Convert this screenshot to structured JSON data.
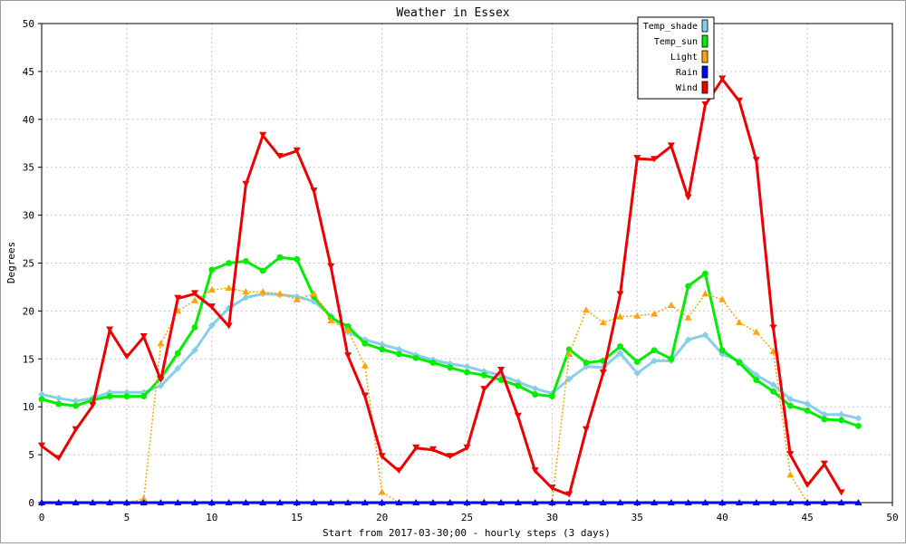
{
  "chart_data": {
    "type": "line",
    "title": "Weather in Essex",
    "xlabel": "Start from 2017-03-30;00 - hourly steps (3 days)",
    "ylabel": "Degrees",
    "xlim": [
      0,
      50
    ],
    "ylim": [
      0,
      50
    ],
    "xticks": [
      "0",
      "5",
      "10",
      "15",
      "20",
      "25",
      "30",
      "35",
      "40",
      "45",
      "50"
    ],
    "yticks": [
      "0",
      "5",
      "10",
      "15",
      "20",
      "25",
      "30",
      "35",
      "40",
      "45",
      "50"
    ],
    "grid": true,
    "legend_position": "top-right",
    "series": [
      {
        "name": "Temp_shade",
        "color": "#87ceeb",
        "marker": "diamond",
        "line": "solid",
        "x": [
          0,
          1,
          2,
          3,
          4,
          5,
          6,
          7,
          8,
          9,
          10,
          11,
          12,
          13,
          14,
          15,
          16,
          17,
          18,
          19,
          20,
          21,
          22,
          23,
          24,
          25,
          26,
          27,
          28,
          29,
          30,
          31,
          32,
          33,
          34,
          35,
          36,
          37,
          38,
          39,
          40,
          41,
          42,
          43,
          44,
          45,
          46,
          47,
          48
        ],
        "values": [
          11.3,
          10.9,
          10.6,
          10.9,
          11.5,
          11.5,
          11.5,
          12.2,
          14.0,
          15.9,
          18.5,
          20.3,
          21.4,
          21.8,
          21.7,
          21.5,
          21.0,
          19.5,
          17.8,
          17.0,
          16.5,
          16.0,
          15.4,
          14.9,
          14.5,
          14.2,
          13.7,
          13.3,
          12.6,
          11.9,
          11.4,
          12.9,
          14.2,
          14.1,
          15.6,
          13.5,
          14.8,
          14.8,
          17.0,
          17.5,
          15.5,
          14.8,
          13.3,
          12.3,
          10.8,
          10.3,
          9.2,
          9.2,
          8.8
        ]
      },
      {
        "name": "Temp_sun",
        "color": "#00ee00",
        "marker": "circle",
        "line": "solid",
        "x": [
          0,
          1,
          2,
          3,
          4,
          5,
          6,
          7,
          8,
          9,
          10,
          11,
          12,
          13,
          14,
          15,
          16,
          17,
          18,
          19,
          20,
          21,
          22,
          23,
          24,
          25,
          26,
          27,
          28,
          29,
          30,
          31,
          32,
          33,
          34,
          35,
          36,
          37,
          38,
          39,
          40,
          41,
          42,
          43,
          44,
          45,
          46,
          47,
          48
        ],
        "values": [
          10.8,
          10.3,
          10.1,
          10.7,
          11.1,
          11.1,
          11.1,
          13.0,
          15.6,
          18.3,
          24.3,
          25.0,
          25.2,
          24.2,
          25.6,
          25.4,
          21.5,
          19.3,
          18.4,
          16.6,
          16.0,
          15.5,
          15.1,
          14.6,
          14.1,
          13.6,
          13.3,
          12.8,
          12.2,
          11.3,
          11.1,
          16.0,
          14.6,
          14.8,
          16.3,
          14.7,
          15.9,
          15.0,
          22.6,
          23.9,
          15.9,
          14.6,
          12.8,
          11.6,
          10.1,
          9.6,
          8.7,
          8.6,
          8.0
        ]
      },
      {
        "name": "Light",
        "color": "#ffa500",
        "marker": "triangle-up",
        "line": "dotted",
        "x": [
          0,
          1,
          2,
          3,
          4,
          5,
          6,
          7,
          8,
          9,
          10,
          11,
          12,
          13,
          14,
          15,
          16,
          17,
          18,
          19,
          20,
          21,
          22,
          23,
          24,
          25,
          26,
          27,
          28,
          29,
          30,
          31,
          32,
          33,
          34,
          35,
          36,
          37,
          38,
          39,
          40,
          41,
          42,
          43,
          44,
          45,
          46,
          47,
          48
        ],
        "values": [
          0,
          0,
          0,
          0,
          0,
          0,
          0.4,
          16.6,
          20.0,
          21.1,
          22.2,
          22.4,
          22.0,
          22.0,
          21.8,
          21.2,
          21.8,
          19.0,
          18.0,
          14.3,
          1.1,
          0,
          0,
          0,
          0,
          0,
          0.1,
          0,
          0,
          0,
          0.1,
          15.5,
          20.1,
          18.8,
          19.4,
          19.5,
          19.7,
          20.6,
          19.3,
          21.8,
          21.2,
          18.8,
          17.8,
          15.8,
          2.9,
          0,
          0,
          0,
          0
        ]
      },
      {
        "name": "Rain",
        "color": "#0000ff",
        "marker": "triangle-up",
        "line": "solid",
        "x": [
          0,
          1,
          2,
          3,
          4,
          5,
          6,
          7,
          8,
          9,
          10,
          11,
          12,
          13,
          14,
          15,
          16,
          17,
          18,
          19,
          20,
          21,
          22,
          23,
          24,
          25,
          26,
          27,
          28,
          29,
          30,
          31,
          32,
          33,
          34,
          35,
          36,
          37,
          38,
          39,
          40,
          41,
          42,
          43,
          44,
          45,
          46,
          47,
          48
        ],
        "values": [
          0,
          0,
          0,
          0,
          0,
          0,
          0,
          0,
          0,
          0,
          0,
          0,
          0,
          0,
          0,
          0,
          0,
          0,
          0,
          0,
          0,
          0,
          0,
          0,
          0,
          0,
          0,
          0,
          0,
          0,
          0,
          0,
          0,
          0,
          0,
          0,
          0,
          0,
          0,
          0,
          0,
          0,
          0,
          0,
          0,
          0,
          0,
          0,
          0
        ]
      },
      {
        "name": "Wind",
        "color": "#ee0000",
        "marker": "triangle-down",
        "line": "solid",
        "x": [
          0,
          1,
          2,
          3,
          4,
          5,
          6,
          7,
          8,
          9,
          10,
          11,
          12,
          13,
          14,
          15,
          16,
          17,
          18,
          19,
          20,
          21,
          22,
          23,
          24,
          25,
          26,
          27,
          28,
          29,
          30,
          31,
          32,
          33,
          34,
          35,
          36,
          37,
          38,
          39,
          40,
          41,
          42,
          43,
          44,
          45,
          46,
          47
        ],
        "values": [
          5.9,
          4.6,
          7.6,
          10.1,
          18.0,
          15.2,
          17.3,
          12.8,
          21.3,
          21.8,
          20.4,
          18.4,
          33.2,
          38.3,
          36.1,
          36.7,
          32.5,
          24.6,
          15.3,
          11.1,
          4.8,
          3.3,
          5.7,
          5.5,
          4.8,
          5.7,
          11.8,
          13.8,
          9.0,
          3.3,
          1.5,
          0.8,
          7.6,
          13.5,
          21.7,
          35.9,
          35.8,
          37.2,
          31.8,
          41.5,
          44.2,
          41.9,
          35.7,
          18.2,
          5.0,
          1.8,
          4.0,
          1.0
        ]
      }
    ]
  }
}
